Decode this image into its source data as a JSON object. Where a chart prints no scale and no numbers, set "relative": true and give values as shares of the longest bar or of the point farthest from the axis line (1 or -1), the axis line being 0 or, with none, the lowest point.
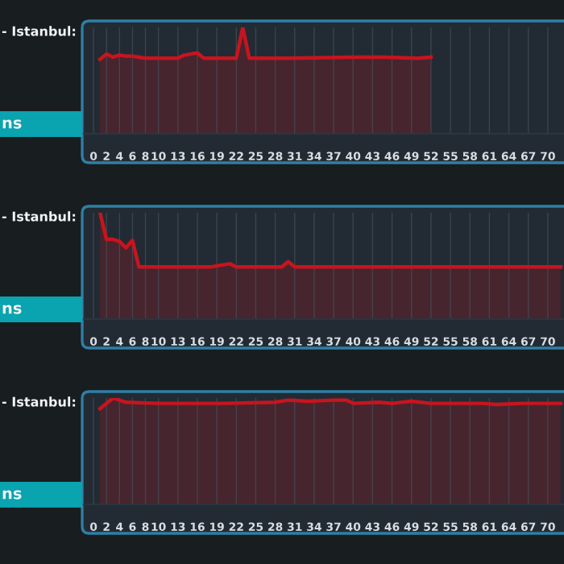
{
  "chart_data": [
    {
      "type": "area",
      "relative": true,
      "title": "- Istanbul:",
      "annotations": [
        "ns"
      ],
      "grid": "x",
      "color": "#c8141e",
      "xlim": [
        -1.5,
        72.5
      ],
      "xticks": [
        0,
        2,
        4,
        6,
        8,
        10,
        13,
        16,
        19,
        22,
        25,
        28,
        31,
        34,
        37,
        40,
        43,
        46,
        49,
        52,
        55,
        58,
        61,
        64,
        67,
        70
      ],
      "x": [
        1,
        2,
        3,
        4,
        5,
        6,
        7,
        8,
        13,
        14,
        16,
        17,
        22,
        23,
        24,
        30,
        40,
        45,
        50,
        52
      ],
      "values": [
        0.7,
        0.75,
        0.72,
        0.74,
        0.73,
        0.73,
        0.72,
        0.71,
        0.71,
        0.74,
        0.76,
        0.71,
        0.71,
        1.0,
        0.71,
        0.71,
        0.72,
        0.72,
        0.71,
        0.72
      ]
    },
    {
      "type": "area",
      "relative": true,
      "title": "- Istanbul:",
      "annotations": [
        "ns"
      ],
      "grid": "x",
      "color": "#c8141e",
      "xlim": [
        -1.5,
        72.5
      ],
      "xticks": [
        0,
        2,
        4,
        6,
        8,
        10,
        13,
        16,
        19,
        22,
        25,
        28,
        31,
        34,
        37,
        40,
        43,
        46,
        49,
        52,
        55,
        58,
        61,
        64,
        67,
        70
      ],
      "x": [
        1,
        2,
        3,
        4,
        5,
        6,
        7,
        8,
        18,
        20,
        21,
        22,
        29,
        30,
        31,
        40,
        50,
        60,
        72
      ],
      "values": [
        1.0,
        0.75,
        0.75,
        0.73,
        0.67,
        0.74,
        0.49,
        0.49,
        0.49,
        0.51,
        0.52,
        0.49,
        0.49,
        0.54,
        0.49,
        0.49,
        0.49,
        0.49,
        0.49
      ]
    },
    {
      "type": "area",
      "relative": true,
      "title": "- Istanbul:",
      "annotations": [
        "ns"
      ],
      "grid": "x",
      "color": "#c8141e",
      "xlim": [
        -1.5,
        72.5
      ],
      "xticks": [
        0,
        2,
        4,
        6,
        8,
        10,
        13,
        16,
        19,
        22,
        25,
        28,
        31,
        34,
        37,
        40,
        43,
        46,
        49,
        52,
        55,
        58,
        61,
        64,
        67,
        70
      ],
      "x": [
        1,
        3,
        5,
        10,
        20,
        28,
        30,
        33,
        37,
        39,
        40,
        44,
        46,
        49,
        52,
        55,
        60,
        62,
        66,
        69,
        72
      ],
      "values": [
        0.9,
        1.0,
        0.96,
        0.95,
        0.95,
        0.96,
        0.98,
        0.97,
        0.98,
        0.98,
        0.95,
        0.96,
        0.95,
        0.97,
        0.95,
        0.95,
        0.95,
        0.94,
        0.95,
        0.95,
        0.95
      ]
    }
  ]
}
